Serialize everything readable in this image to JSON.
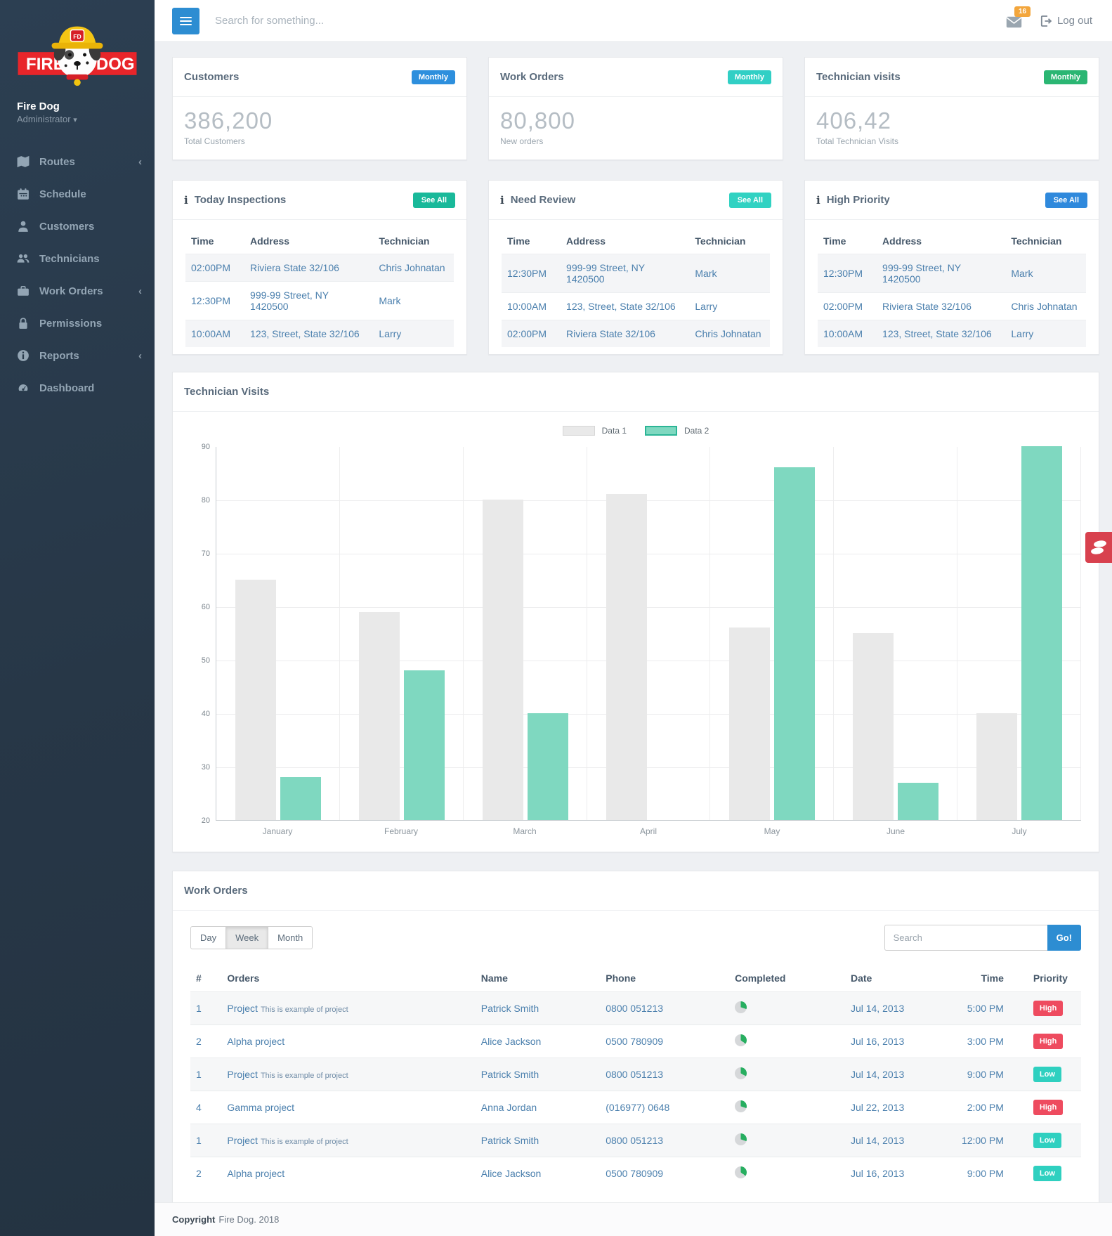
{
  "brand": {
    "name": "Fire Dog",
    "role": "Administrator",
    "logo_word_left": "FIRE",
    "logo_word_right": "DOG",
    "logo_helmet_badge": "FD"
  },
  "topbar": {
    "search_placeholder": "Search for something...",
    "mail_badge": "16",
    "logout_label": "Log out"
  },
  "sidebar": {
    "items": [
      {
        "label": "Routes",
        "icon": "map-icon",
        "has_children": true
      },
      {
        "label": "Schedule",
        "icon": "calendar-icon",
        "has_children": false
      },
      {
        "label": "Customers",
        "icon": "user-icon",
        "has_children": false
      },
      {
        "label": "Technicians",
        "icon": "users-icon",
        "has_children": false
      },
      {
        "label": "Work Orders",
        "icon": "briefcase-icon",
        "has_children": true
      },
      {
        "label": "Permissions",
        "icon": "lock-icon",
        "has_children": false
      },
      {
        "label": "Reports",
        "icon": "info-icon",
        "has_children": true
      },
      {
        "label": "Dashboard",
        "icon": "dashboard-icon",
        "has_children": false
      }
    ]
  },
  "stats": [
    {
      "title": "Customers",
      "badge": "Monthly",
      "badge_color": "#2d8fdd",
      "value": "386,200",
      "caption": "Total Customers"
    },
    {
      "title": "Work Orders",
      "badge": "Monthly",
      "badge_color": "#31cfc5",
      "value": "80,800",
      "caption": "New orders"
    },
    {
      "title": "Technician visits",
      "badge": "Monthly",
      "badge_color": "#2bb673",
      "value": "406,42",
      "caption": "Total Technician Visits"
    }
  ],
  "mini_tables": [
    {
      "title": "Today Inspections",
      "see_all": "See All",
      "see_all_color": "#19b99a",
      "columns": [
        "Time",
        "Address",
        "Technician"
      ],
      "rows": [
        [
          "02:00PM",
          "Riviera State 32/106",
          "Chris Johnatan"
        ],
        [
          "12:30PM",
          "999-99 Street, NY 1420500",
          "Mark"
        ],
        [
          "10:00AM",
          "123, Street, State 32/106",
          "Larry"
        ]
      ]
    },
    {
      "title": "Need Review",
      "see_all": "See All",
      "see_all_color": "#31d2c2",
      "columns": [
        "Time",
        "Address",
        "Technician"
      ],
      "rows": [
        [
          "12:30PM",
          "999-99 Street, NY 1420500",
          "Mark"
        ],
        [
          "10:00AM",
          "123, Street, State 32/106",
          "Larry"
        ],
        [
          "02:00PM",
          "Riviera State 32/106",
          "Chris Johnatan"
        ]
      ]
    },
    {
      "title": "High Priority",
      "see_all": "See All",
      "see_all_color": "#2f89dc",
      "columns": [
        "Time",
        "Address",
        "Technician"
      ],
      "rows": [
        [
          "12:30PM",
          "999-99 Street, NY 1420500",
          "Mark"
        ],
        [
          "02:00PM",
          "Riviera State 32/106",
          "Chris Johnatan"
        ],
        [
          "10:00AM",
          "123, Street, State 32/106",
          "Larry"
        ]
      ]
    }
  ],
  "chart_card": {
    "title": "Technician Visits"
  },
  "chart_data": {
    "type": "bar",
    "title": "Technician Visits",
    "categories": [
      "January",
      "February",
      "March",
      "April",
      "May",
      "June",
      "July"
    ],
    "series": [
      {
        "name": "Data 1",
        "color": "#e9e9e9",
        "values": [
          65,
          59,
          80,
          81,
          56,
          55,
          40
        ]
      },
      {
        "name": "Data 2",
        "color": "#7fd8c0",
        "values": [
          28,
          48,
          40,
          null,
          86,
          27,
          90
        ]
      }
    ],
    "xlabel": "",
    "ylabel": "",
    "ylim": [
      20,
      90
    ],
    "ytick_step": 10,
    "grid": true,
    "legend_position": "top-center"
  },
  "work_orders": {
    "title": "Work Orders",
    "filters": [
      "Day",
      "Week",
      "Month"
    ],
    "active_filter": "Week",
    "search_placeholder": "Search",
    "go_label": "Go!",
    "columns": [
      "#",
      "Orders",
      "Name",
      "Phone",
      "Completed",
      "Date",
      "Time",
      "Priority"
    ],
    "priority_colors": {
      "High": "#ee4b5f",
      "Low": "#2fd0c0"
    },
    "rows": [
      {
        "num": "1",
        "order": "Project",
        "order_note": "This is example of project",
        "name": "Patrick Smith",
        "phone": "0800 051213",
        "completed_pct": 30,
        "date": "Jul 14, 2013",
        "time": "5:00 PM",
        "priority": "High"
      },
      {
        "num": "2",
        "order": "Alpha project",
        "order_note": "",
        "name": "Alice Jackson",
        "phone": "0500 780909",
        "completed_pct": 35,
        "date": "Jul 16, 2013",
        "time": "3:00 PM",
        "priority": "High"
      },
      {
        "num": "1",
        "order": "Project",
        "order_note": "This is example of project",
        "name": "Patrick Smith",
        "phone": "0800 051213",
        "completed_pct": 33,
        "date": "Jul 14, 2013",
        "time": "9:00 PM",
        "priority": "Low"
      },
      {
        "num": "4",
        "order": "Gamma project",
        "order_note": "",
        "name": "Anna Jordan",
        "phone": "(016977) 0648",
        "completed_pct": 30,
        "date": "Jul 22, 2013",
        "time": "2:00 PM",
        "priority": "High"
      },
      {
        "num": "1",
        "order": "Project",
        "order_note": "This is example of project",
        "name": "Patrick Smith",
        "phone": "0800 051213",
        "completed_pct": 30,
        "date": "Jul 14, 2013",
        "time": "12:00 PM",
        "priority": "Low"
      },
      {
        "num": "2",
        "order": "Alpha project",
        "order_note": "",
        "name": "Alice Jackson",
        "phone": "0500 780909",
        "completed_pct": 35,
        "date": "Jul 16, 2013",
        "time": "9:00 PM",
        "priority": "Low"
      }
    ]
  },
  "footer": {
    "bold": "Copyright",
    "text": "Fire Dog. 2018"
  },
  "side_tab": {
    "color": "#d8414e"
  }
}
